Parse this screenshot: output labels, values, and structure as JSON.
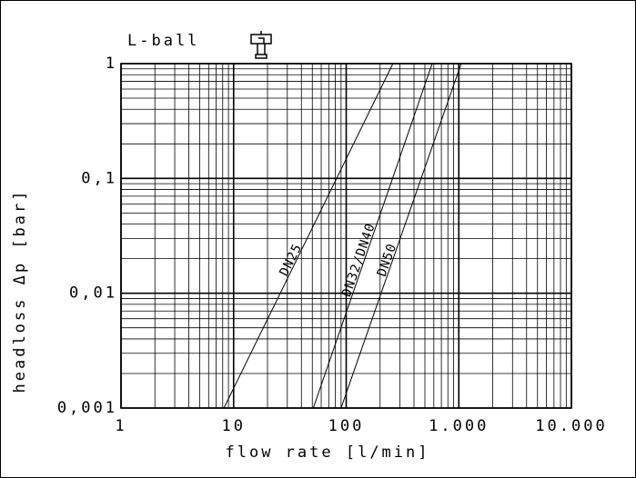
{
  "chart_data": {
    "type": "line",
    "title": "L-ball",
    "x_label": "flow rate  [l/min]",
    "y_label": "headloss Δp [bar]",
    "x_scale": "log",
    "y_scale": "log",
    "grid": true,
    "minor_grid": true,
    "xlim": [
      1,
      10000
    ],
    "ylim": [
      0.001,
      1
    ],
    "xticks": [
      1,
      10,
      100,
      {
        "value": 1000,
        "label": "1.000"
      },
      {
        "value": 10000,
        "label": "10.000"
      }
    ],
    "yticks": [
      {
        "value": 0.001,
        "label": "0,001"
      },
      {
        "value": 0.01,
        "label": "0,01"
      },
      {
        "value": 0.1,
        "label": "0,1"
      },
      1
    ],
    "series": [
      {
        "name": "DN25",
        "color": "#000000",
        "x": [
          8.2,
          260
        ],
        "values": [
          0.001,
          1
        ]
      },
      {
        "name": "DN32/DN40",
        "color": "#000000",
        "x": [
          51,
          580
        ],
        "values": [
          0.001,
          1
        ]
      },
      {
        "name": "DN50",
        "color": "#000000",
        "x": [
          90,
          1050
        ],
        "values": [
          0.001,
          1
        ]
      }
    ]
  }
}
